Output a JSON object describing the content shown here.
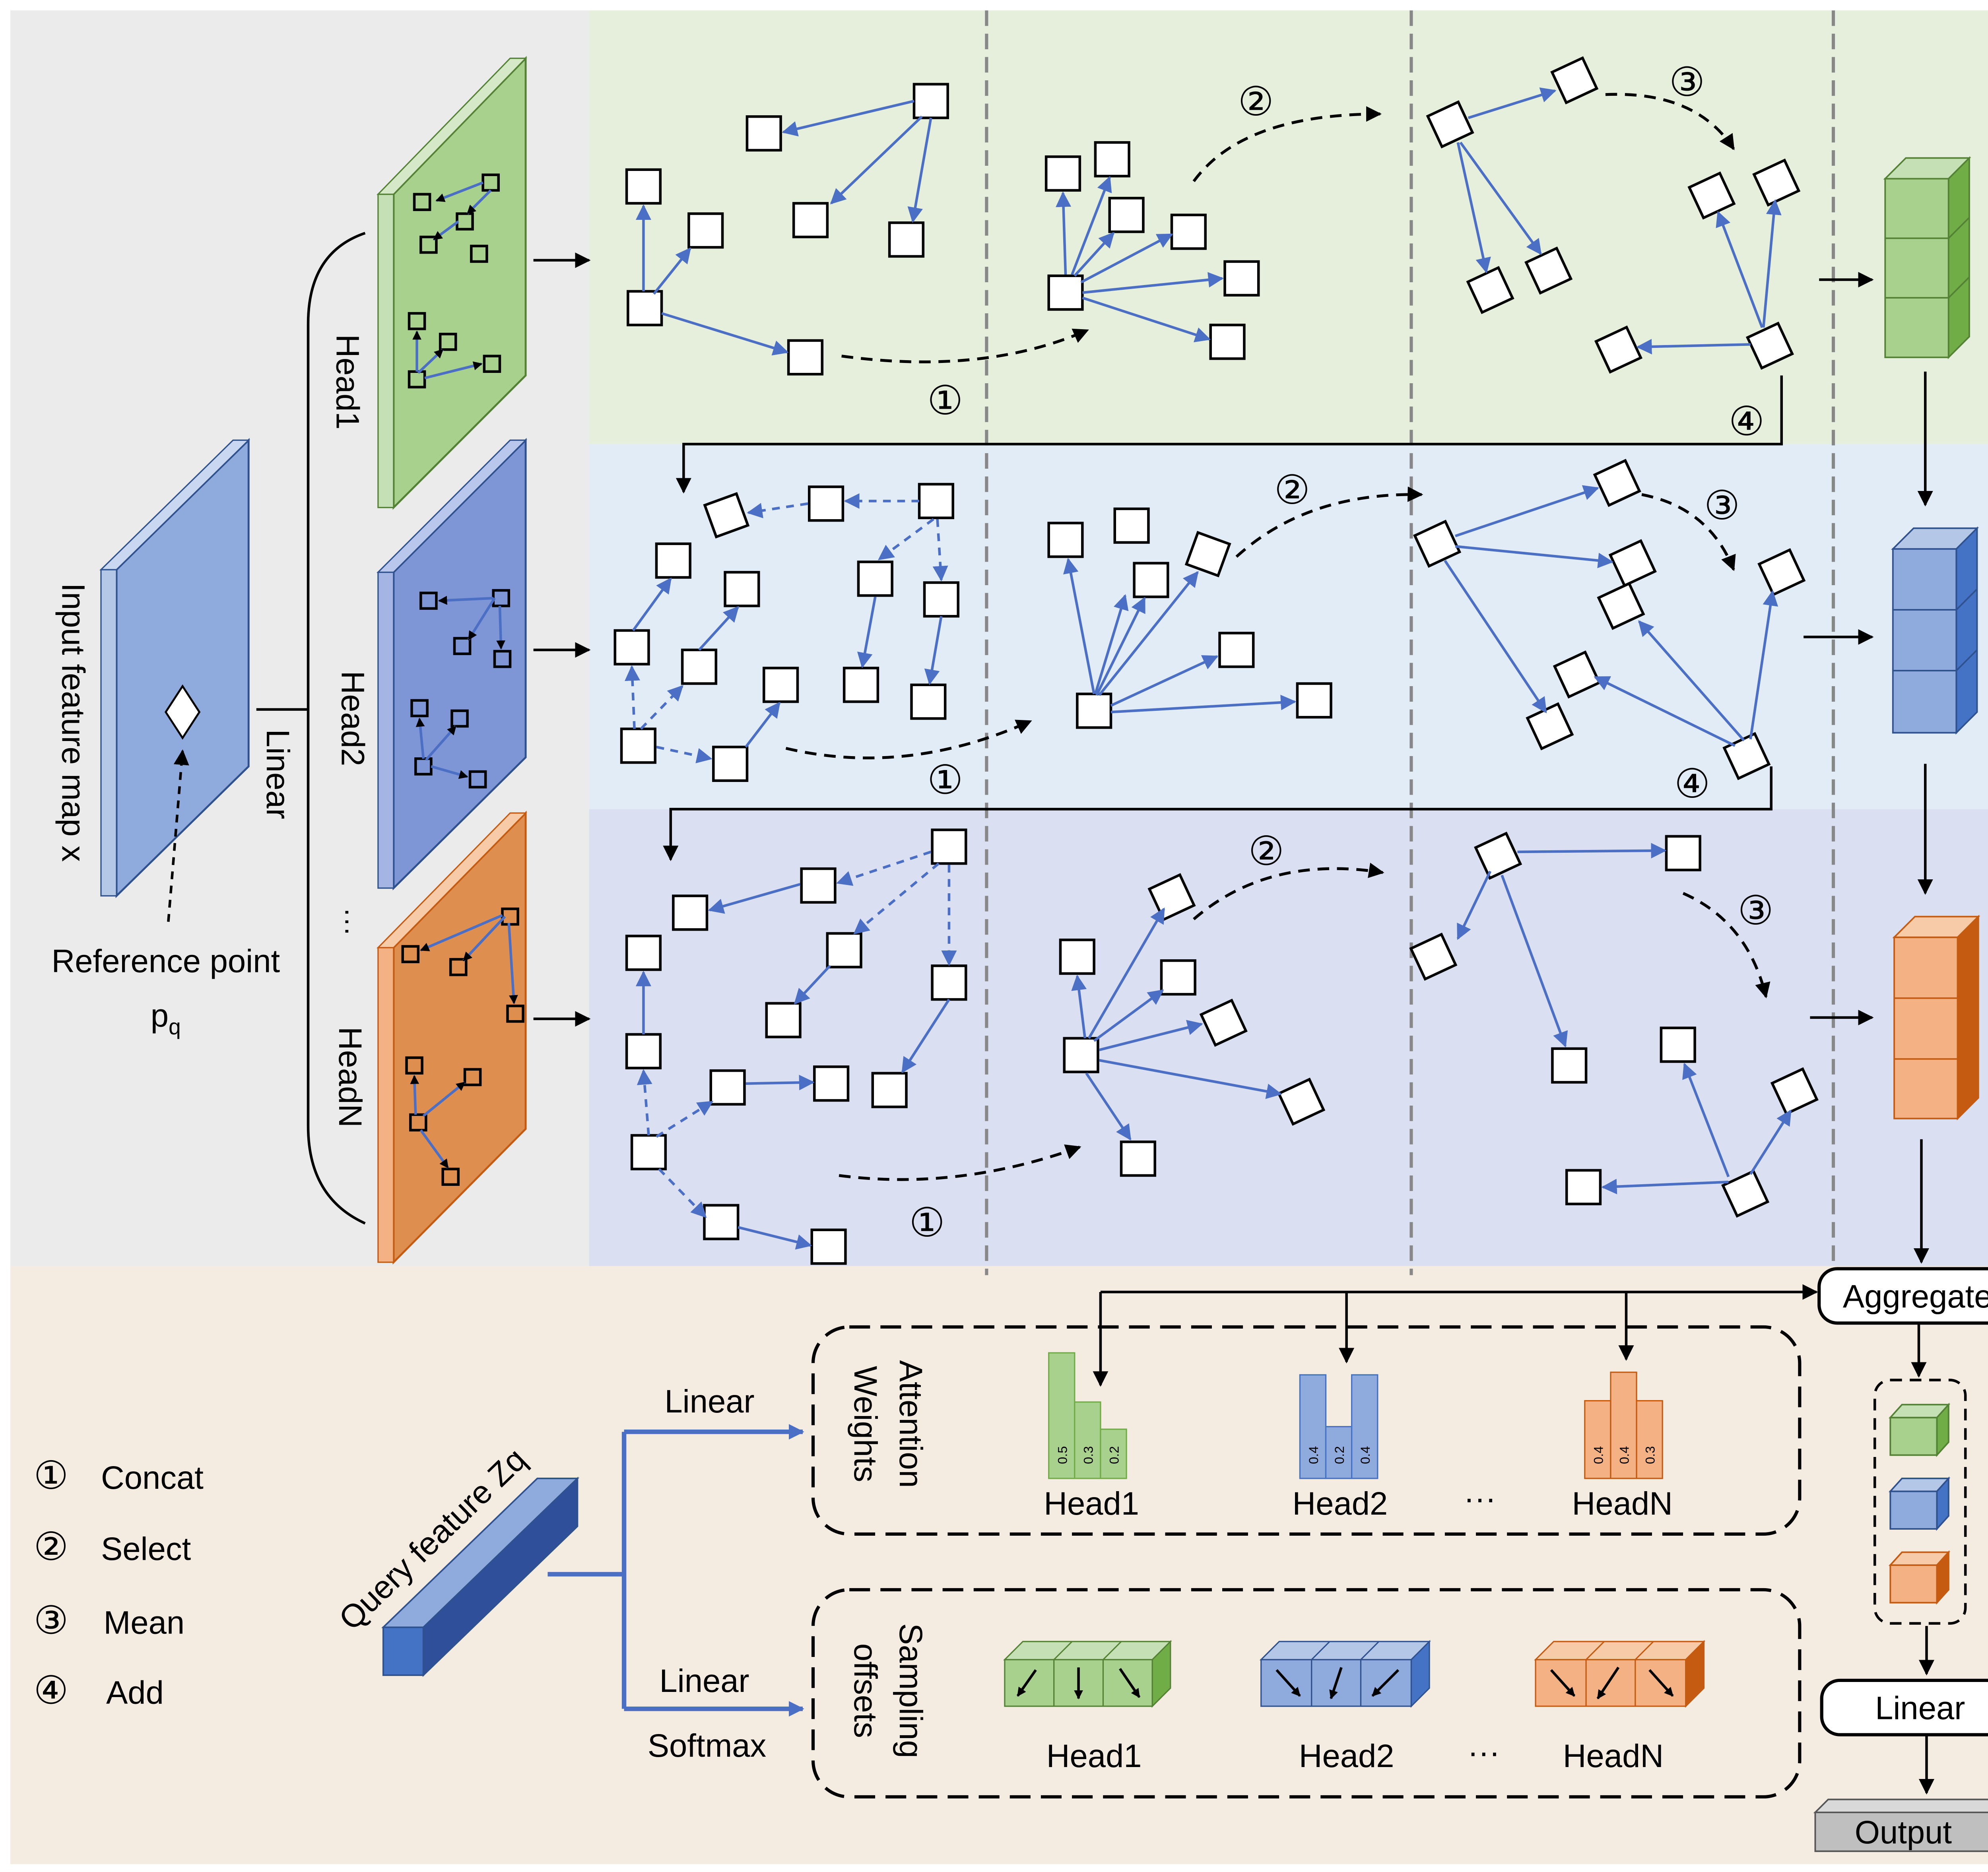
{
  "labels": {
    "input_feature_map": "Input feature map x",
    "reference_point": "Reference point",
    "reference_point_symbol_base": "p",
    "reference_point_symbol_sub": "q",
    "linear_vertical": "Linear",
    "head1": "Head1",
    "head2": "Head2",
    "headN": "HeadN",
    "ellipsis": "···",
    "aggregate": "Aggregate",
    "linear_box": "Linear",
    "output": "Output",
    "query_feature": "Query feature Zq",
    "linear_top": "Linear",
    "linear_bottom": "Linear",
    "softmax": "Softmax",
    "attention_weights_line1": "Attention",
    "attention_weights_line2": "Weights",
    "sampling_offsets_line1": "Sampling",
    "sampling_offsets_line2": "offsets"
  },
  "steps": [
    {
      "symbol": "①",
      "label": "Concat"
    },
    {
      "symbol": "②",
      "label": "Select"
    },
    {
      "symbol": "③",
      "label": "Mean"
    },
    {
      "symbol": "④",
      "label": "Add"
    }
  ],
  "attention_heads": [
    {
      "name": "Head1",
      "weights": [
        "0.5",
        "0.3",
        "0.2"
      ]
    },
    {
      "name": "Head2",
      "weights": [
        "0.4",
        "0.2",
        "0.4"
      ]
    },
    {
      "name": "HeadN",
      "weights": [
        "0.4",
        "0.4",
        "0.3"
      ]
    }
  ],
  "colors": {
    "green_fill": "#a9d18e",
    "green_panel": "#e6efdc",
    "blue_fill": "#8faadc",
    "blue_panel": "#e2ecf6",
    "purple_panel": "#dadff2",
    "orange_fill": "#f4b183",
    "orange_map": "#de8f50",
    "left_panel": "#ebebeb",
    "bottom_panel": "#f4ebe1",
    "arrow_blue": "#4b6fc4"
  }
}
